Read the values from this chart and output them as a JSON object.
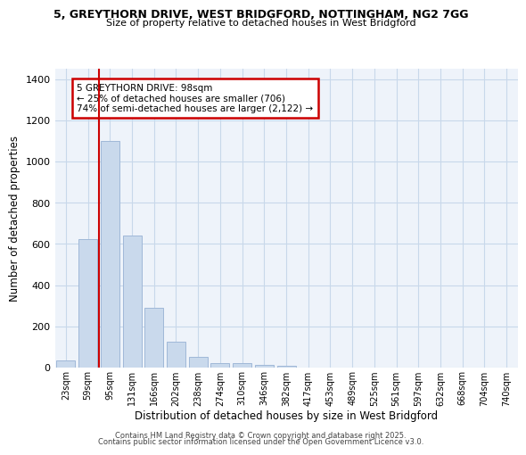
{
  "title1": "5, GREYTHORN DRIVE, WEST BRIDGFORD, NOTTINGHAM, NG2 7GG",
  "title2": "Size of property relative to detached houses in West Bridgford",
  "xlabel": "Distribution of detached houses by size in West Bridgford",
  "ylabel": "Number of detached properties",
  "bar_labels": [
    "23sqm",
    "59sqm",
    "95sqm",
    "131sqm",
    "166sqm",
    "202sqm",
    "238sqm",
    "274sqm",
    "310sqm",
    "346sqm",
    "382sqm",
    "417sqm",
    "453sqm",
    "489sqm",
    "525sqm",
    "561sqm",
    "597sqm",
    "632sqm",
    "668sqm",
    "704sqm",
    "740sqm"
  ],
  "bar_values": [
    35,
    625,
    1100,
    640,
    290,
    125,
    50,
    22,
    20,
    15,
    8,
    0,
    0,
    0,
    0,
    0,
    0,
    0,
    0,
    0,
    0
  ],
  "bar_color": "#c9d9ec",
  "bar_edge_color": "#a0b8d8",
  "grid_color": "#c8d8ea",
  "bg_color": "#eef3fa",
  "red_line_color": "#cc0000",
  "annotation_title": "5 GREYTHORN DRIVE: 98sqm",
  "annotation_line1": "← 25% of detached houses are smaller (706)",
  "annotation_line2": "74% of semi-detached houses are larger (2,122) →",
  "annotation_box_color": "#cc0000",
  "ylim": [
    0,
    1450
  ],
  "yticks": [
    0,
    200,
    400,
    600,
    800,
    1000,
    1200,
    1400
  ],
  "footer1": "Contains HM Land Registry data © Crown copyright and database right 2025.",
  "footer2": "Contains public sector information licensed under the Open Government Licence v3.0."
}
